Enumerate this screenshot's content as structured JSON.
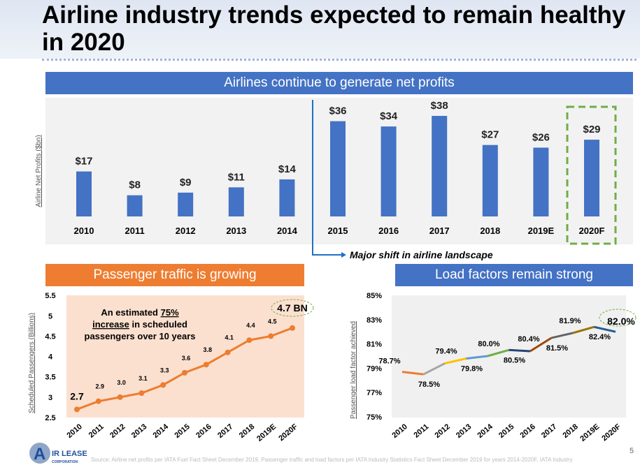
{
  "title": "Airline industry trends expected to remain healthy in 2020",
  "profits_header": "Airlines continue to generate net profits",
  "traffic_header": "Passenger traffic is growing",
  "load_header": "Load factors remain strong",
  "shift_note": "Major shift in airline landscape",
  "traffic_note": [
    "An estimated ",
    "75%",
    "increase",
    " in scheduled",
    "passengers over 10 years"
  ],
  "traffic_callout": "4.7 BN",
  "logo_text": [
    "AIR LEASE",
    "CORPORATION"
  ],
  "source": "Source: Airline net profits per IATA Fuel Fact Sheet December 2019. Passenger traffic and load factors per IATA Industry Statistics Fact Sheet December 2019 for years 2014-2020F, IATA Industry",
  "page_number": "5",
  "colors": {
    "blue": "#4472c4",
    "orange": "#ee7d31",
    "green": "#70ad47"
  },
  "chart_data": [
    {
      "type": "bar",
      "ylabel": "Airline Net Profits ($bn)",
      "categories": [
        "2010",
        "2011",
        "2012",
        "2013",
        "2014",
        "2015",
        "2016",
        "2017",
        "2018",
        "2019E",
        "2020F"
      ],
      "values": [
        17,
        8,
        9,
        11,
        14,
        36,
        34,
        38,
        27,
        26,
        29
      ],
      "labels": [
        "$17",
        "$8",
        "$9",
        "$11",
        "$14",
        "$36",
        "$34",
        "$38",
        "$27",
        "$26",
        "$29"
      ],
      "highlight": "2020F"
    },
    {
      "type": "line",
      "ylabel": "Scheduled Passengers (Billions)",
      "categories": [
        "2010",
        "2011",
        "2012",
        "2013",
        "2014",
        "2015",
        "2016",
        "2017",
        "2018",
        "2019E",
        "2020F"
      ],
      "values": [
        2.7,
        2.9,
        3.0,
        3.1,
        3.3,
        3.6,
        3.8,
        4.1,
        4.4,
        4.5,
        4.7
      ],
      "labels": [
        "2.7",
        "2.9",
        "3.0",
        "3.1",
        "3.3",
        "3.6",
        "3.8",
        "4.1",
        "4.4",
        "4.5",
        ""
      ],
      "yticks": [
        "2.5",
        "3",
        "3.5",
        "4",
        "4.5",
        "5",
        "5.5"
      ],
      "ylim": [
        2.5,
        5.5
      ]
    },
    {
      "type": "line",
      "ylabel": "Passenger load factor achieved",
      "categories": [
        "2010",
        "2011",
        "2012",
        "2013",
        "2014",
        "2015",
        "2016",
        "2017",
        "2018",
        "2019E",
        "2020F"
      ],
      "values": [
        78.7,
        78.5,
        79.4,
        79.8,
        80.0,
        80.5,
        80.4,
        81.5,
        81.9,
        82.4,
        82.0
      ],
      "labels": [
        "78.7%",
        "78.5%",
        "79.4%",
        "79.8%",
        "80.0%",
        "80.5%",
        "80.4%",
        "81.5%",
        "81.9%",
        "82.4%",
        "82.0%"
      ],
      "yticks": [
        "75%",
        "77%",
        "79%",
        "81%",
        "83%",
        "85%"
      ],
      "ylim": [
        75,
        85
      ],
      "segment_colors": [
        "#ed7d31",
        "#a5a5a5",
        "#ffc000",
        "#5b9bd5",
        "#70ad47",
        "#264478",
        "#9e480e",
        "#636363",
        "#997300",
        "#255e91"
      ]
    }
  ]
}
